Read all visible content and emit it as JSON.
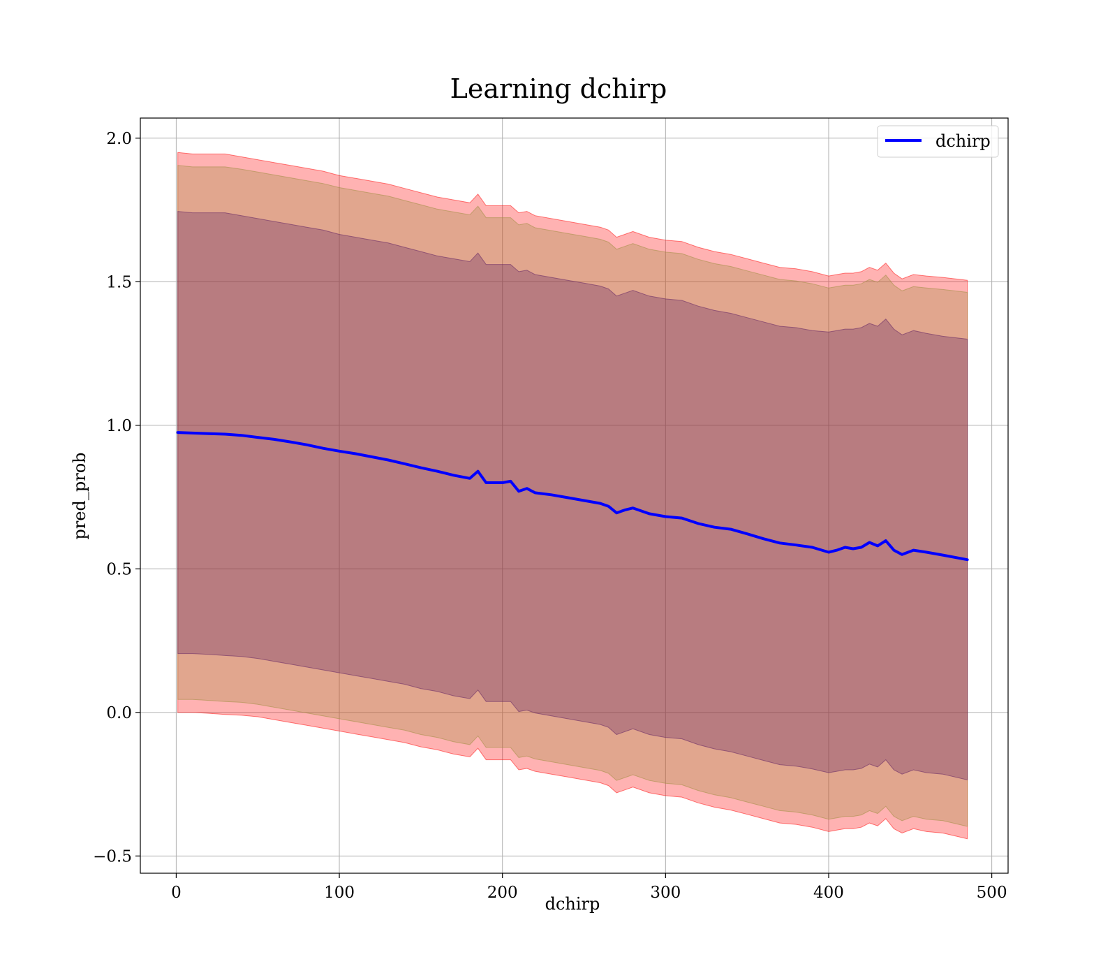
{
  "chart_data": {
    "type": "line",
    "title": "Learning dchirp",
    "xlabel": "dchirp",
    "ylabel": "pred_prob",
    "xlim": [
      -22,
      510
    ],
    "ylim": [
      -0.56,
      2.07
    ],
    "xticks": [
      0,
      100,
      200,
      300,
      400,
      500
    ],
    "yticks": [
      -0.5,
      0.0,
      0.5,
      1.0,
      1.5,
      2.0
    ],
    "xtick_labels": [
      "0",
      "100",
      "200",
      "300",
      "400",
      "500"
    ],
    "ytick_labels": [
      "−0.5",
      "0.0",
      "0.5",
      "1.0",
      "1.5",
      "2.0"
    ],
    "grid": true,
    "legend_position": "top-right",
    "series": [
      {
        "name": "dchirp",
        "color": "#0000ff",
        "x": [
          1,
          10,
          20,
          30,
          40,
          50,
          60,
          70,
          80,
          90,
          100,
          110,
          120,
          130,
          140,
          150,
          160,
          170,
          180,
          185,
          190,
          200,
          205,
          210,
          215,
          220,
          230,
          240,
          250,
          260,
          265,
          270,
          275,
          280,
          290,
          300,
          310,
          320,
          330,
          340,
          350,
          360,
          370,
          380,
          390,
          400,
          405,
          410,
          415,
          420,
          425,
          430,
          435,
          440,
          445,
          452,
          460,
          470,
          485
        ],
        "y": [
          0.975,
          0.973,
          0.971,
          0.969,
          0.965,
          0.958,
          0.951,
          0.942,
          0.932,
          0.92,
          0.91,
          0.901,
          0.89,
          0.879,
          0.866,
          0.852,
          0.84,
          0.826,
          0.815,
          0.84,
          0.8,
          0.8,
          0.805,
          0.77,
          0.78,
          0.765,
          0.758,
          0.748,
          0.738,
          0.728,
          0.718,
          0.695,
          0.705,
          0.712,
          0.692,
          0.682,
          0.677,
          0.658,
          0.645,
          0.638,
          0.622,
          0.605,
          0.59,
          0.583,
          0.575,
          0.558,
          0.565,
          0.575,
          0.57,
          0.575,
          0.592,
          0.58,
          0.598,
          0.565,
          0.55,
          0.565,
          0.558,
          0.548,
          0.532
        ]
      }
    ],
    "bands": [
      {
        "level": "outer",
        "fill": "#ff0000",
        "opacity": 0.3,
        "upper": [
          1.95,
          1.945,
          1.945,
          1.945,
          1.935,
          1.925,
          1.915,
          1.905,
          1.895,
          1.885,
          1.87,
          1.86,
          1.85,
          1.84,
          1.825,
          1.81,
          1.795,
          1.785,
          1.775,
          1.805,
          1.765,
          1.765,
          1.765,
          1.74,
          1.745,
          1.73,
          1.72,
          1.71,
          1.7,
          1.69,
          1.68,
          1.655,
          1.665,
          1.675,
          1.655,
          1.645,
          1.64,
          1.62,
          1.605,
          1.595,
          1.58,
          1.565,
          1.55,
          1.545,
          1.535,
          1.52,
          1.525,
          1.53,
          1.53,
          1.535,
          1.55,
          1.54,
          1.565,
          1.53,
          1.51,
          1.525,
          1.52,
          1.515,
          1.505
        ],
        "lower": [
          0.0,
          0.0,
          -0.003,
          -0.007,
          -0.01,
          -0.015,
          -0.025,
          -0.035,
          -0.045,
          -0.055,
          -0.065,
          -0.075,
          -0.085,
          -0.095,
          -0.105,
          -0.12,
          -0.13,
          -0.145,
          -0.155,
          -0.125,
          -0.165,
          -0.165,
          -0.165,
          -0.2,
          -0.195,
          -0.205,
          -0.215,
          -0.225,
          -0.235,
          -0.245,
          -0.255,
          -0.28,
          -0.27,
          -0.26,
          -0.28,
          -0.29,
          -0.295,
          -0.315,
          -0.33,
          -0.34,
          -0.355,
          -0.37,
          -0.385,
          -0.39,
          -0.4,
          -0.415,
          -0.41,
          -0.405,
          -0.405,
          -0.4,
          -0.385,
          -0.395,
          -0.37,
          -0.405,
          -0.42,
          -0.405,
          -0.415,
          -0.42,
          -0.44
        ]
      },
      {
        "level": "middle",
        "fill": "#9a8b3a",
        "opacity": 0.3,
        "upper": [
          1.905,
          1.9,
          1.9,
          1.9,
          1.892,
          1.882,
          1.872,
          1.862,
          1.852,
          1.842,
          1.828,
          1.818,
          1.808,
          1.798,
          1.783,
          1.768,
          1.753,
          1.743,
          1.733,
          1.763,
          1.723,
          1.723,
          1.723,
          1.698,
          1.703,
          1.688,
          1.678,
          1.668,
          1.658,
          1.648,
          1.638,
          1.613,
          1.623,
          1.633,
          1.613,
          1.603,
          1.598,
          1.578,
          1.563,
          1.553,
          1.538,
          1.523,
          1.508,
          1.503,
          1.493,
          1.478,
          1.483,
          1.488,
          1.488,
          1.493,
          1.508,
          1.498,
          1.523,
          1.488,
          1.468,
          1.483,
          1.478,
          1.473,
          1.463
        ],
        "lower": [
          0.045,
          0.045,
          0.042,
          0.038,
          0.035,
          0.028,
          0.018,
          0.008,
          -0.002,
          -0.012,
          -0.022,
          -0.032,
          -0.042,
          -0.052,
          -0.062,
          -0.077,
          -0.087,
          -0.102,
          -0.112,
          -0.082,
          -0.122,
          -0.122,
          -0.122,
          -0.157,
          -0.152,
          -0.162,
          -0.172,
          -0.182,
          -0.192,
          -0.202,
          -0.212,
          -0.237,
          -0.227,
          -0.217,
          -0.237,
          -0.247,
          -0.252,
          -0.272,
          -0.287,
          -0.297,
          -0.312,
          -0.327,
          -0.342,
          -0.347,
          -0.357,
          -0.372,
          -0.367,
          -0.362,
          -0.362,
          -0.357,
          -0.342,
          -0.352,
          -0.327,
          -0.362,
          -0.377,
          -0.362,
          -0.372,
          -0.377,
          -0.397
        ]
      },
      {
        "level": "inner",
        "fill": "#5a1a60",
        "opacity": 0.3,
        "upper": [
          1.745,
          1.74,
          1.74,
          1.74,
          1.73,
          1.72,
          1.71,
          1.7,
          1.69,
          1.68,
          1.665,
          1.655,
          1.645,
          1.635,
          1.62,
          1.605,
          1.59,
          1.58,
          1.57,
          1.6,
          1.56,
          1.56,
          1.56,
          1.535,
          1.54,
          1.525,
          1.515,
          1.505,
          1.495,
          1.485,
          1.475,
          1.45,
          1.46,
          1.47,
          1.45,
          1.44,
          1.435,
          1.415,
          1.4,
          1.39,
          1.375,
          1.36,
          1.345,
          1.34,
          1.33,
          1.325,
          1.33,
          1.335,
          1.335,
          1.34,
          1.355,
          1.345,
          1.37,
          1.335,
          1.315,
          1.33,
          1.32,
          1.31,
          1.3
        ],
        "lower": [
          0.205,
          0.205,
          0.202,
          0.198,
          0.195,
          0.188,
          0.178,
          0.168,
          0.158,
          0.148,
          0.138,
          0.128,
          0.118,
          0.108,
          0.098,
          0.083,
          0.073,
          0.058,
          0.048,
          0.078,
          0.038,
          0.038,
          0.038,
          0.003,
          0.008,
          -0.002,
          -0.012,
          -0.022,
          -0.032,
          -0.042,
          -0.052,
          -0.077,
          -0.067,
          -0.057,
          -0.077,
          -0.087,
          -0.092,
          -0.112,
          -0.127,
          -0.137,
          -0.152,
          -0.167,
          -0.182,
          -0.187,
          -0.197,
          -0.21,
          -0.205,
          -0.2,
          -0.2,
          -0.195,
          -0.18,
          -0.19,
          -0.165,
          -0.2,
          -0.215,
          -0.2,
          -0.21,
          -0.215,
          -0.235
        ]
      }
    ]
  }
}
